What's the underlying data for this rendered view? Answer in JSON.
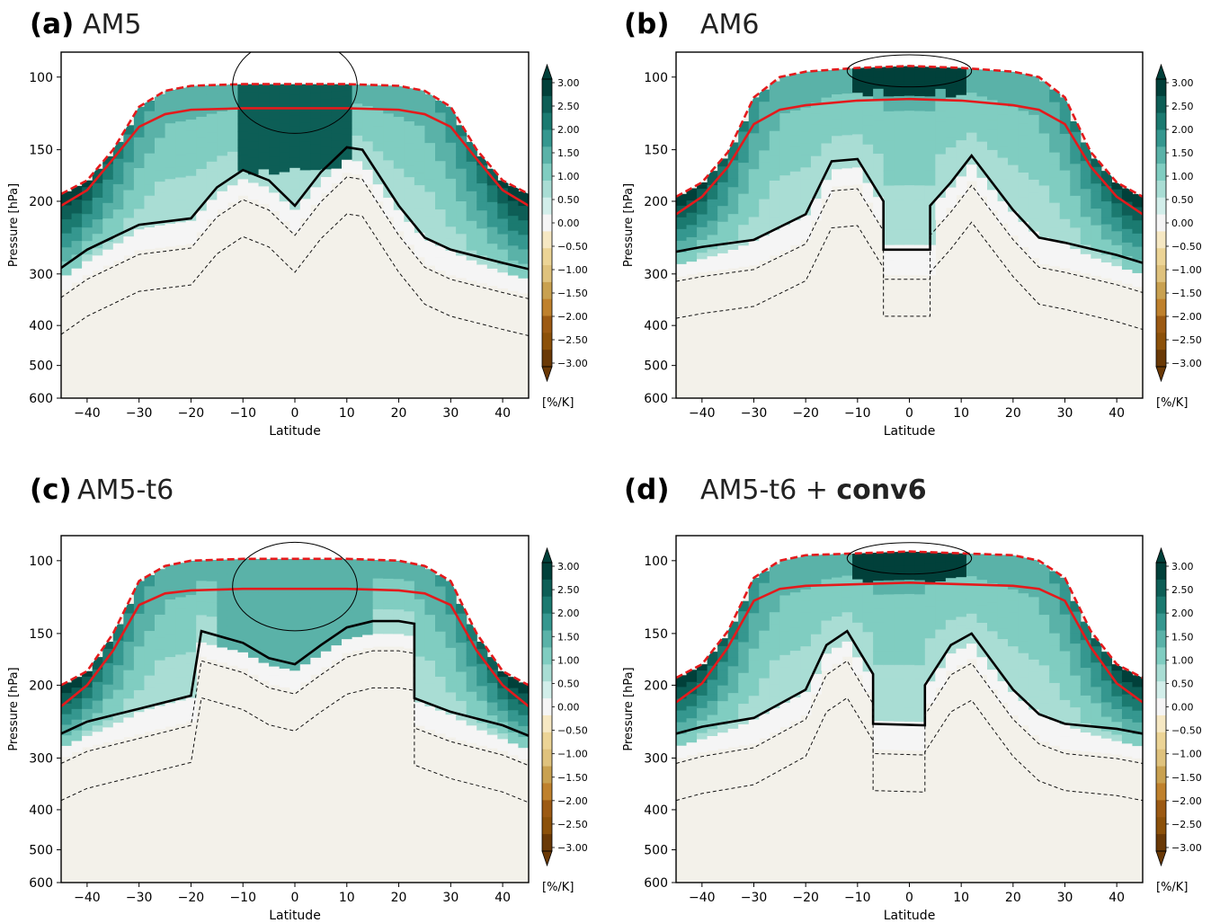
{
  "chart_data": [
    {
      "type": "heatmap",
      "panel_tag": "(a)",
      "title": "AM5",
      "xlabel": "Latitude",
      "ylabel": "Pressure [hPa]",
      "xlim": [
        -45,
        45
      ],
      "ylim_hPa": [
        600,
        87
      ],
      "y_scale": "log",
      "x_ticks": [
        -40,
        -30,
        -20,
        -10,
        0,
        10,
        20,
        30,
        40
      ],
      "y_ticks": [
        100,
        150,
        200,
        300,
        400,
        500,
        600
      ],
      "tropopause_dashed_hPa": {
        "lat": [
          -45,
          -40,
          -35,
          -30,
          -25,
          -20,
          -10,
          0,
          10,
          20,
          25,
          30,
          35,
          40,
          45
        ],
        "p": [
          192,
          178,
          150,
          118,
          108,
          105,
          104,
          104,
          104,
          105,
          108,
          118,
          150,
          178,
          192
        ]
      },
      "tropopause_solid_hPa": {
        "lat": [
          -45,
          -40,
          -35,
          -30,
          -25,
          -20,
          -10,
          0,
          10,
          20,
          25,
          30,
          35,
          40,
          45
        ],
        "p": [
          205,
          188,
          158,
          132,
          123,
          120,
          119,
          119,
          119,
          120,
          123,
          132,
          158,
          188,
          205
        ]
      },
      "contour_zero_hPa": {
        "lat": [
          -45,
          -40,
          -30,
          -20,
          -15,
          -10,
          -5,
          0,
          5,
          10,
          13,
          20,
          25,
          30,
          40,
          45
        ],
        "p": [
          290,
          262,
          228,
          220,
          185,
          168,
          178,
          205,
          170,
          148,
          150,
          205,
          245,
          262,
          282,
          292
        ]
      },
      "peak_region": {
        "lat": [
          -10,
          10
        ],
        "p": [
          100,
          170
        ],
        "value_pct_per_K": 2.5
      }
    },
    {
      "type": "heatmap",
      "panel_tag": "(b)",
      "title": "AM6",
      "xlabel": "Latitude",
      "ylabel": "Pressure [hPa]",
      "xlim": [
        -45,
        45
      ],
      "ylim_hPa": [
        600,
        87
      ],
      "y_scale": "log",
      "x_ticks": [
        -40,
        -30,
        -20,
        -10,
        0,
        10,
        20,
        30,
        40
      ],
      "y_ticks": [
        100,
        200,
        300,
        400,
        500,
        600
      ],
      "extra_y_tick": 150,
      "tropopause_dashed_hPa": {
        "lat": [
          -45,
          -40,
          -35,
          -30,
          -25,
          -20,
          -10,
          0,
          10,
          20,
          25,
          30,
          35,
          40,
          45
        ],
        "p": [
          195,
          180,
          152,
          112,
          100,
          97,
          95,
          94,
          95,
          97,
          100,
          112,
          152,
          180,
          195
        ]
      },
      "tropopause_solid_hPa": {
        "lat": [
          -45,
          -40,
          -35,
          -30,
          -25,
          -20,
          -10,
          0,
          10,
          20,
          25,
          30,
          35,
          40,
          45
        ],
        "p": [
          215,
          195,
          165,
          130,
          120,
          117,
          114,
          113,
          114,
          117,
          120,
          130,
          165,
          195,
          215
        ]
      },
      "contour_zero_hPa": {
        "lat": [
          -45,
          -40,
          -30,
          -20,
          -15,
          -10,
          -5,
          -5,
          4,
          4,
          8,
          12,
          20,
          25,
          30,
          40,
          45
        ],
        "p": [
          265,
          258,
          248,
          215,
          160,
          158,
          200,
          262,
          262,
          205,
          180,
          155,
          210,
          245,
          252,
          270,
          282
        ]
      },
      "peak_region": {
        "lat": [
          -10,
          10
        ],
        "p": [
          92,
          110
        ],
        "value_pct_per_K": 3.0
      }
    },
    {
      "type": "heatmap",
      "panel_tag": "(c)",
      "title": "AM5-t6",
      "xlabel": "Latitude",
      "ylabel": "Pressure [hPa]",
      "xlim": [
        -45,
        45
      ],
      "ylim_hPa": [
        600,
        87
      ],
      "y_scale": "log",
      "x_ticks": [
        -40,
        -30,
        -20,
        -10,
        0,
        10,
        20,
        30,
        40
      ],
      "y_ticks": [
        100,
        150,
        200,
        300,
        400,
        500,
        600
      ],
      "tropopause_dashed_hPa": {
        "lat": [
          -45,
          -40,
          -35,
          -30,
          -25,
          -20,
          -10,
          0,
          10,
          20,
          25,
          30,
          35,
          40,
          45
        ],
        "p": [
          200,
          185,
          150,
          112,
          103,
          100,
          99,
          99,
          99,
          100,
          103,
          112,
          150,
          185,
          200
        ]
      },
      "tropopause_solid_hPa": {
        "lat": [
          -45,
          -40,
          -35,
          -30,
          -25,
          -20,
          -10,
          0,
          10,
          20,
          25,
          30,
          35,
          40,
          45
        ],
        "p": [
          225,
          200,
          165,
          128,
          120,
          118,
          117,
          117,
          117,
          118,
          120,
          128,
          165,
          200,
          225
        ]
      },
      "contour_zero_hPa": {
        "lat": [
          -45,
          -40,
          -30,
          -20,
          -18,
          -10,
          -5,
          0,
          5,
          10,
          15,
          20,
          23,
          23,
          30,
          40,
          45
        ],
        "p": [
          262,
          245,
          228,
          212,
          148,
          158,
          172,
          178,
          160,
          145,
          140,
          140,
          142,
          215,
          232,
          250,
          265
        ]
      },
      "peak_region": {
        "lat": [
          -15,
          15
        ],
        "p": [
          110,
          180
        ],
        "value_pct_per_K": 1.5
      }
    },
    {
      "type": "heatmap",
      "panel_tag": "(d)",
      "title": "AM5-t6 + conv6",
      "xlabel": "Latitude",
      "ylabel": "Pressure [hPa]",
      "xlim": [
        -45,
        45
      ],
      "ylim_hPa": [
        600,
        87
      ],
      "y_scale": "log",
      "x_ticks": [
        -40,
        -30,
        -20,
        -10,
        0,
        10,
        20,
        30,
        40
      ],
      "y_ticks": [
        100,
        150,
        200,
        300,
        400,
        500,
        600
      ],
      "tropopause_dashed_hPa": {
        "lat": [
          -45,
          -40,
          -35,
          -30,
          -25,
          -20,
          -10,
          0,
          10,
          20,
          25,
          30,
          35,
          40,
          45
        ],
        "p": [
          192,
          178,
          148,
          110,
          100,
          97,
          96,
          95,
          96,
          97,
          100,
          110,
          148,
          178,
          192
        ]
      },
      "tropopause_solid_hPa": {
        "lat": [
          -45,
          -40,
          -35,
          -30,
          -25,
          -20,
          -10,
          0,
          10,
          20,
          25,
          30,
          35,
          40,
          45
        ],
        "p": [
          220,
          198,
          162,
          125,
          117,
          115,
          114,
          113,
          114,
          115,
          117,
          125,
          162,
          198,
          220
        ]
      },
      "contour_zero_hPa": {
        "lat": [
          -45,
          -40,
          -30,
          -20,
          -16,
          -12,
          -7,
          -7,
          3,
          3,
          8,
          12,
          20,
          25,
          30,
          40,
          45
        ],
        "p": [
          262,
          252,
          240,
          205,
          160,
          148,
          188,
          248,
          250,
          200,
          160,
          150,
          205,
          235,
          248,
          255,
          262
        ]
      },
      "peak_region": {
        "lat": [
          -10,
          10
        ],
        "p": [
          94,
          112
        ],
        "value_pct_per_K": 3.0
      }
    }
  ],
  "colorbar": {
    "ticks": [
      "3.00",
      "2.50",
      "2.00",
      "1.50",
      "1.00",
      "0.50",
      "0.00",
      "-0.50",
      "-1.00",
      "-1.50",
      "-2.00",
      "-2.50",
      "-3.00"
    ],
    "unit": "[%/K]",
    "colors": [
      "#01403a",
      "#0d5e56",
      "#1b7a70",
      "#35978f",
      "#5ab2a8",
      "#80cdc1",
      "#a9ddd4",
      "#d2eeea",
      "#f5f5f5",
      "#f6e8c3",
      "#ecd496",
      "#dfc27d",
      "#c9a150",
      "#bf812d",
      "#9c5a13",
      "#8c510a",
      "#6a3906"
    ]
  }
}
